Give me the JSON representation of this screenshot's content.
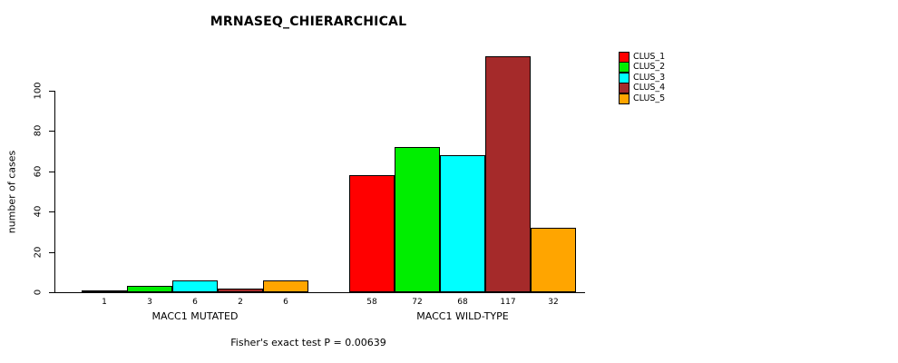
{
  "footer": "Fisher's exact test P = 0.00639",
  "chart_data": {
    "type": "bar",
    "title": "MRNASEQ_CHIERARCHICAL",
    "xlabel": "",
    "ylabel": "number of cases",
    "ylim": [
      0,
      100
    ],
    "yticks": [
      0,
      20,
      40,
      60,
      80,
      100
    ],
    "grid": false,
    "legend_position": "right",
    "series_names": [
      "CLUS_1",
      "CLUS_2",
      "CLUS_3",
      "CLUS_4",
      "CLUS_5"
    ],
    "colors": [
      "#FF0000",
      "#00EE00",
      "#00FFFF",
      "#A52A2A",
      "#FFA500"
    ],
    "groups": [
      {
        "label": "MACC1 MUTATED",
        "values": [
          1,
          3,
          6,
          2,
          6
        ]
      },
      {
        "label": "MACC1 WILD-TYPE",
        "values": [
          58,
          72,
          68,
          117,
          32
        ]
      }
    ]
  },
  "legend": {
    "items": [
      {
        "label": "CLUS_1",
        "color": "#FF0000"
      },
      {
        "label": "CLUS_2",
        "color": "#00EE00"
      },
      {
        "label": "CLUS_3",
        "color": "#00FFFF"
      },
      {
        "label": "CLUS_4",
        "color": "#A52A2A"
      },
      {
        "label": "CLUS_5",
        "color": "#FFA500"
      }
    ]
  }
}
